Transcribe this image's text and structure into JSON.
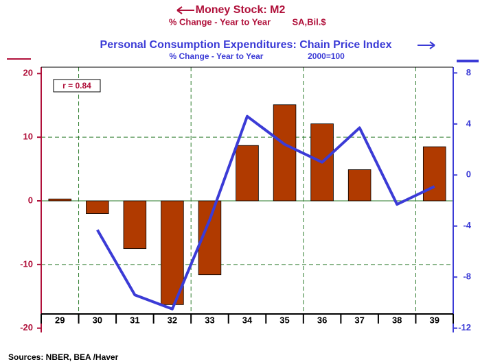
{
  "chart_data": {
    "type": "bar_line",
    "series": [
      {
        "name": "Money Stock: M2",
        "subtitle": "% Change - Year to Year",
        "note": "SA,Bil.$",
        "color": "#b03a00",
        "legend_color": "#b0103a",
        "values": [
          0.3,
          -2,
          -7.5,
          -16.3,
          -11.6,
          8.7,
          15.1,
          12.1,
          4.9,
          null,
          8.5
        ]
      },
      {
        "name": "Personal Consumption Expenditures: Chain Price Index",
        "subtitle": "% Change - Year to Year",
        "note": "2000=100",
        "color": "#3b3bd6",
        "axis": "y2",
        "values": [
          null,
          -4.3,
          -9.4,
          -10.5,
          -3.5,
          4.6,
          2.4,
          1.0,
          3.7,
          -2.3,
          -0.9
        ]
      }
    ],
    "categories": [
      "29",
      "30",
      "31",
      "32",
      "33",
      "34",
      "35",
      "36",
      "37",
      "38",
      "39"
    ],
    "ylim": [
      -21,
      21
    ],
    "yticks": [
      20,
      10,
      0,
      -10,
      -20
    ],
    "y2lim": [
      -12.5,
      8.45
    ],
    "y2ticks": [
      8,
      4,
      0,
      -4,
      -8,
      -12
    ],
    "grid": true,
    "annotation": "r = 0.84",
    "source": "Sources:  NBER, BEA /Haver"
  }
}
